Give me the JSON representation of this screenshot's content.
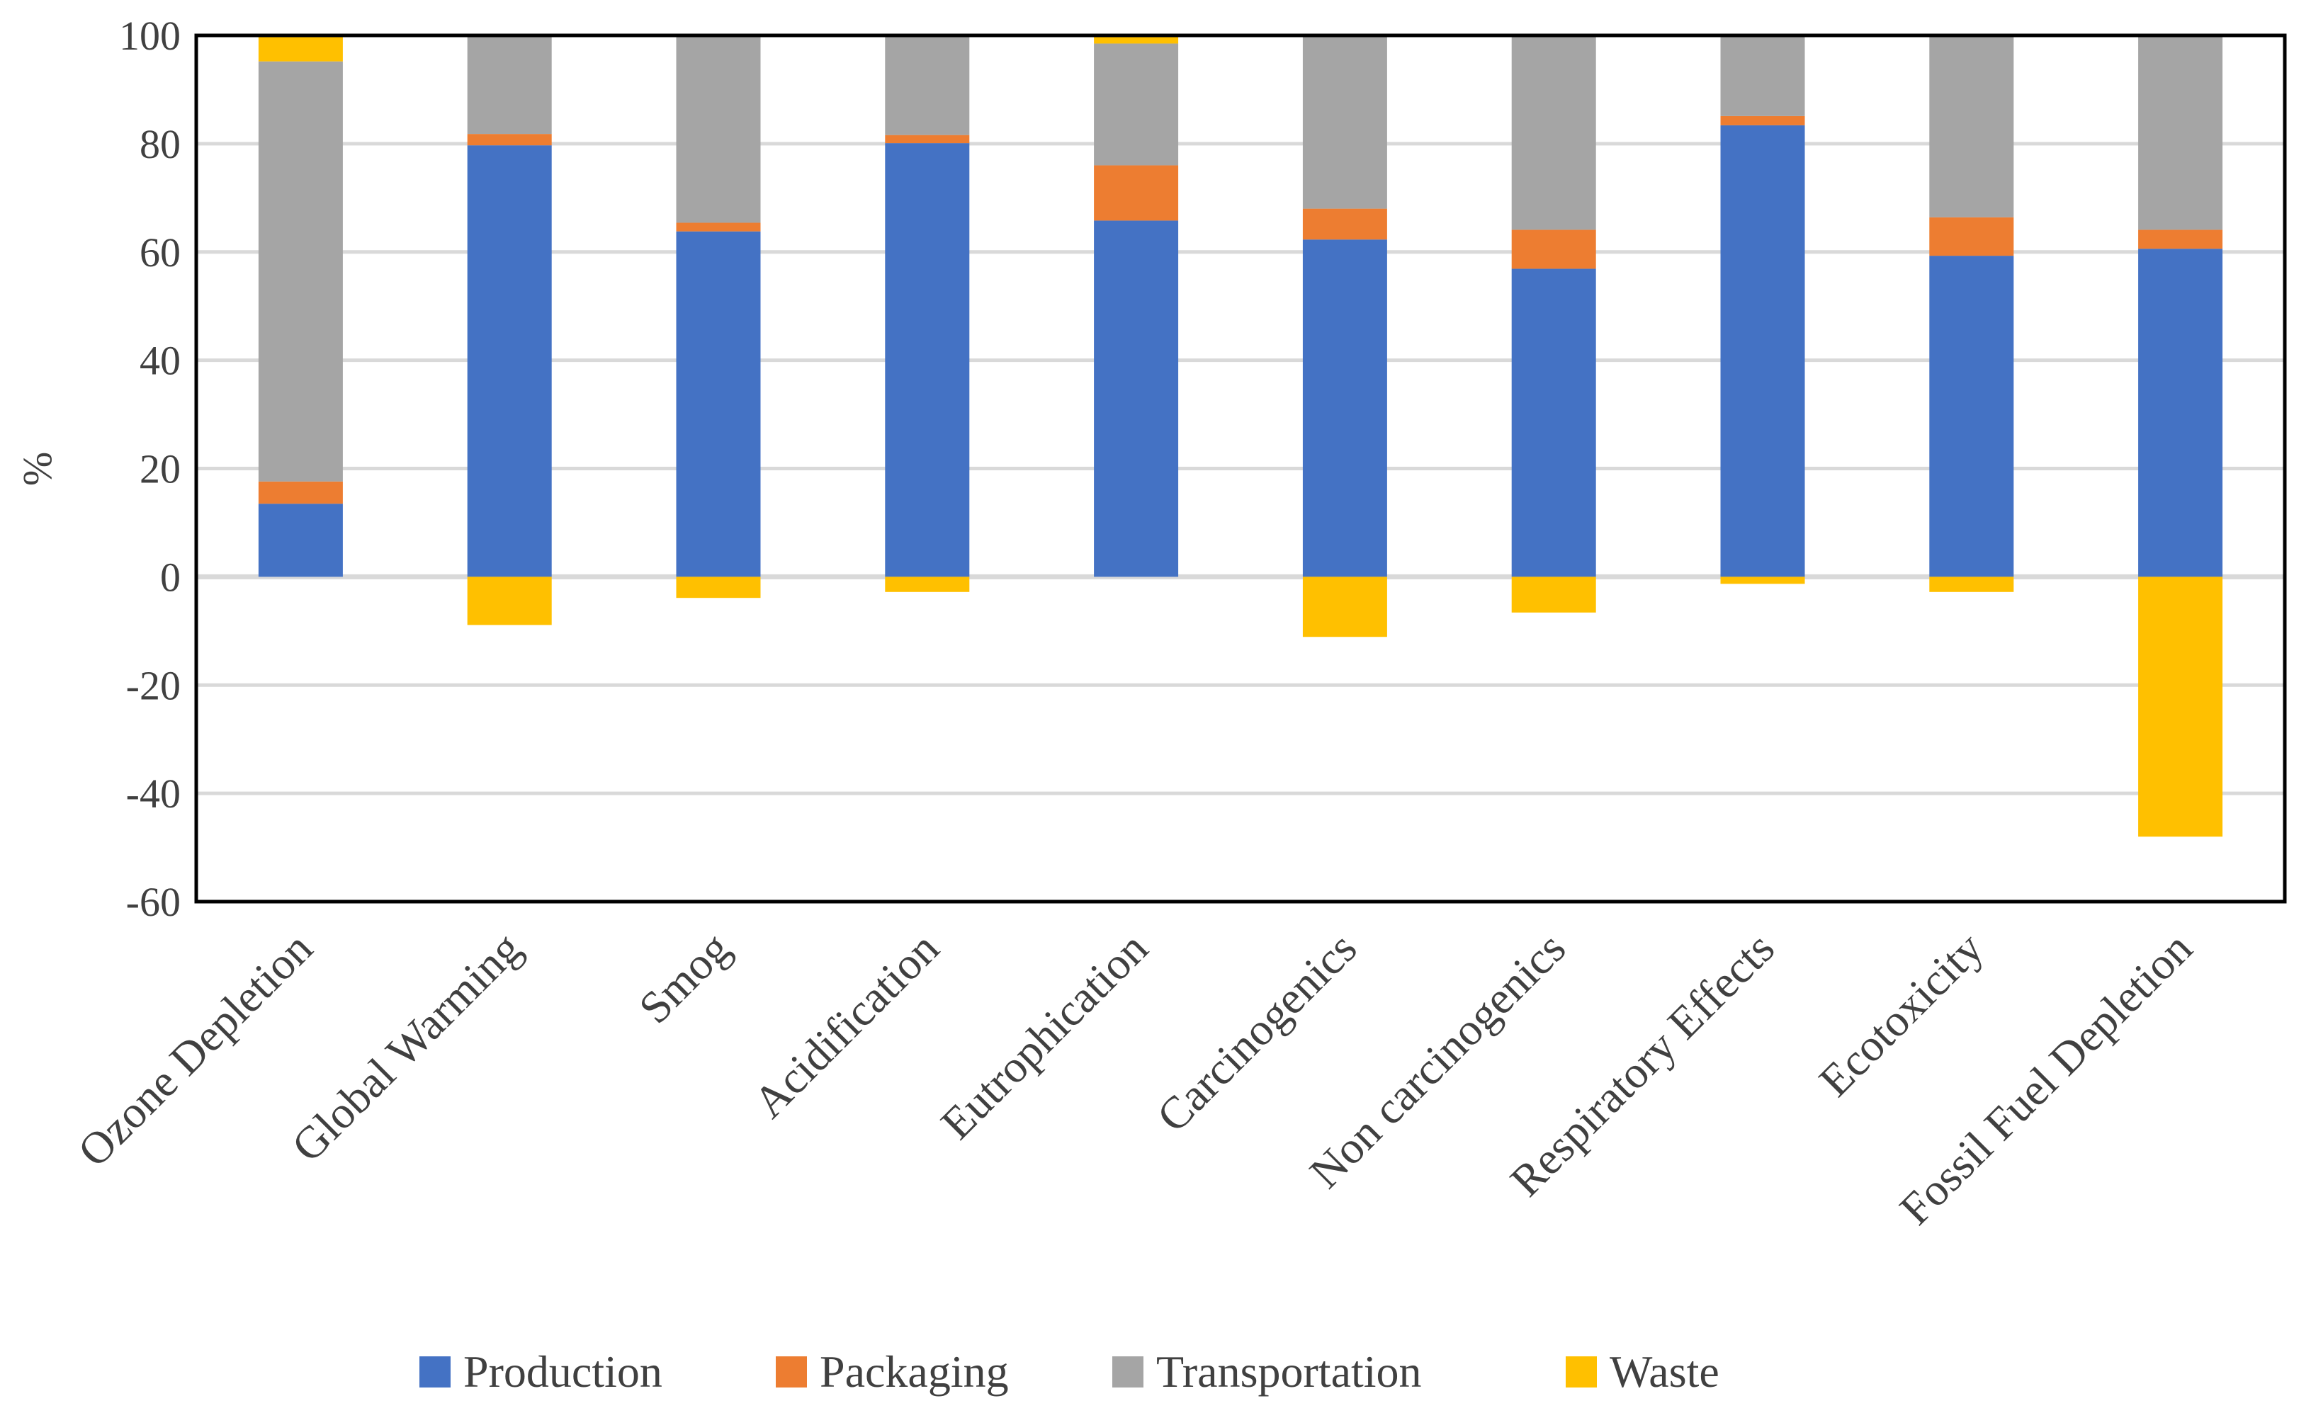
{
  "chart_data": {
    "type": "bar",
    "stacked": true,
    "title": "",
    "xlabel": "",
    "ylabel": "%",
    "ylim": [
      -60,
      100
    ],
    "yticks": [
      "100",
      "80",
      "60",
      "40",
      "20",
      "0",
      "-20",
      "-40",
      "-60"
    ],
    "grid": true,
    "legend_position": "bottom",
    "categories": [
      "Ozone Depletion",
      "Global Warming",
      "Smog",
      "Acidification",
      "Eutrophication",
      "Carcinogenics",
      "Non carcinogenics",
      "Respiratory Effects",
      "Ecotoxicity",
      "Fossil Fuel Depletion"
    ],
    "series": [
      {
        "name": "Production",
        "color": "#4472C4",
        "values": [
          13.5,
          79.7,
          63.8,
          80.1,
          65.8,
          62.3,
          56.9,
          83.4,
          59.3,
          60.6
        ]
      },
      {
        "name": "Packaging",
        "color": "#ED7D31",
        "values": [
          4.1,
          2.1,
          1.6,
          1.5,
          10.2,
          5.7,
          7.2,
          1.7,
          7.1,
          3.5
        ]
      },
      {
        "name": "Transportation",
        "color": "#A5A5A5",
        "values": [
          77.6,
          18.2,
          34.6,
          18.4,
          22.5,
          32.0,
          35.9,
          14.9,
          33.6,
          35.9
        ]
      },
      {
        "name": "Waste",
        "color": "#FFC000",
        "values": [
          4.8,
          -8.9,
          -3.9,
          -2.8,
          1.5,
          -11.1,
          -6.6,
          -1.3,
          -2.8,
          -48.0
        ]
      }
    ]
  }
}
